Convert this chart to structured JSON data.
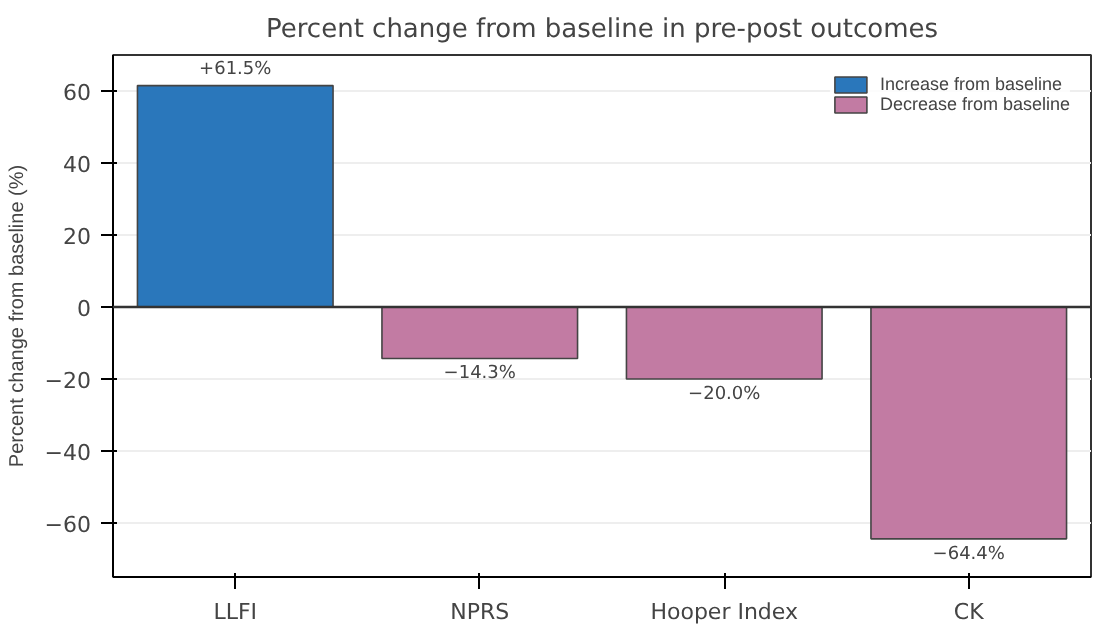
{
  "chart_data": {
    "type": "bar",
    "title": "Percent change from baseline in pre-post outcomes",
    "ylabel": "Percent change from baseline (%)",
    "categories": [
      "LLFI",
      "NPRS",
      "Hooper Index",
      "CK"
    ],
    "series": [
      {
        "name": "Increase from baseline",
        "color": "#2a77bb",
        "values": [
          61.5,
          null,
          null,
          null
        ],
        "value_labels": [
          "+61.5%",
          null,
          null,
          null
        ]
      },
      {
        "name": "Decrease from baseline",
        "color": "#c27ba3",
        "values": [
          null,
          -14.3,
          -20.0,
          -64.4
        ],
        "value_labels": [
          null,
          "−14.3%",
          "−20.0%",
          "−64.4%"
        ]
      }
    ],
    "ylim": [
      -75,
      70
    ],
    "yticks": [
      -60,
      -40,
      -20,
      0,
      20,
      40,
      60
    ],
    "ref_lines": [
      {
        "axis": "y",
        "value": 0,
        "color": "#333333"
      }
    ],
    "grid": "y",
    "legend": "top right"
  }
}
